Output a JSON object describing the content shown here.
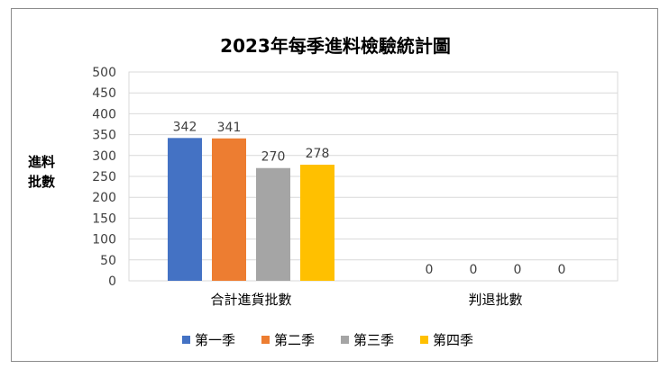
{
  "chart_data": {
    "type": "bar",
    "title": "2023年每季進料檢驗統計圖",
    "ylabel": [
      "進料",
      "批數"
    ],
    "xlabel": "",
    "categories": [
      "合計進貨批數",
      "判退批數"
    ],
    "series": [
      {
        "name": "第一季",
        "values": [
          342,
          0
        ],
        "color": "#4472C4"
      },
      {
        "name": "第二季",
        "values": [
          341,
          0
        ],
        "color": "#ED7D31"
      },
      {
        "name": "第三季",
        "values": [
          270,
          0
        ],
        "color": "#A5A5A5"
      },
      {
        "name": "第四季",
        "values": [
          278,
          0
        ],
        "color": "#FFC000"
      }
    ],
    "ylim": [
      0,
      500
    ],
    "yticks": [
      0,
      50,
      100,
      150,
      200,
      250,
      300,
      350,
      400,
      450,
      500
    ],
    "grid": true,
    "legend_position": "bottom",
    "data_labels": true
  }
}
